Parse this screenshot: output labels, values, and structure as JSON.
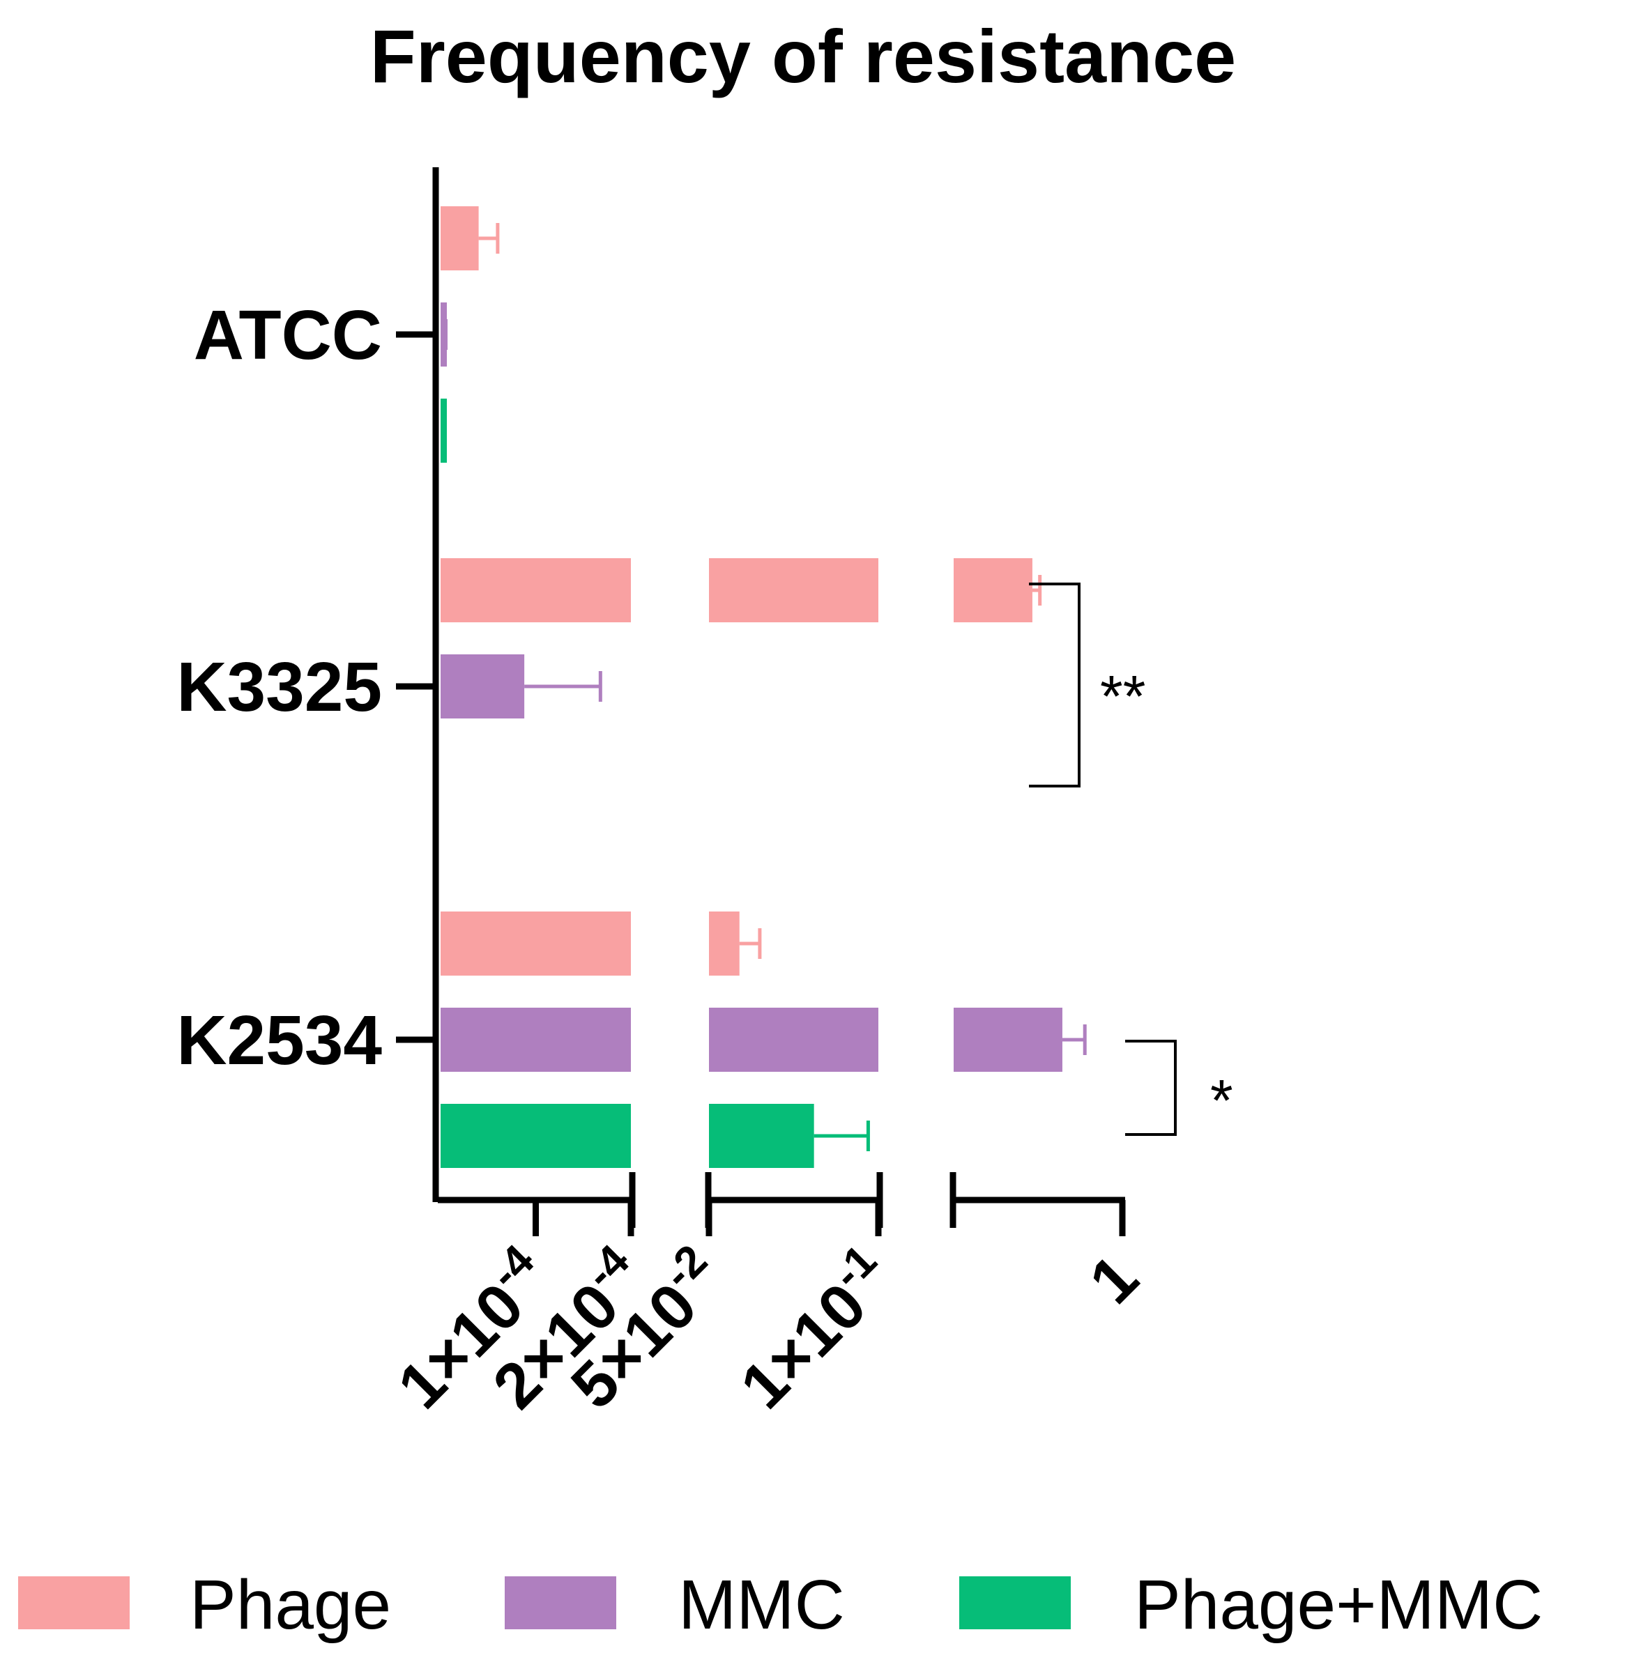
{
  "chart_data": {
    "type": "bar",
    "orientation": "horizontal",
    "title": "Frequency of resistance",
    "xlabel": "",
    "ylabel": "",
    "x_scale": "broken axis (three segments)",
    "x_segments": [
      [
        0,
        0.0002
      ],
      [
        0.05,
        0.1
      ],
      [
        0.1,
        1.0
      ]
    ],
    "tick_labels": [
      {
        "value": 0.0001,
        "base": "1×10",
        "exp": "-4"
      },
      {
        "value": 0.0002,
        "base": "2×10",
        "exp": "-4"
      },
      {
        "value": 0.05,
        "base": "5×10",
        "exp": "-2"
      },
      {
        "value": 0.1,
        "base": "1×10",
        "exp": "-1"
      },
      {
        "value": 1,
        "base": "1",
        "exp": ""
      }
    ],
    "categories": [
      "ATCC",
      "K3325",
      "K2534"
    ],
    "series": [
      {
        "name": "Phage",
        "color": "#F9A1A2",
        "values": [
          4e-05,
          0.52,
          0.059
        ],
        "errors": [
          2e-05,
          0.04,
          0.006
        ]
      },
      {
        "name": "MMC",
        "color": "#AF7FBF",
        "values": [
          5e-06,
          8.8e-05,
          0.68
        ],
        "errors": [
          5e-07,
          8e-05,
          0.12
        ]
      },
      {
        "name": "Phage+MMC",
        "color": "#06BD78",
        "values": [
          5e-06,
          null,
          0.081
        ],
        "errors": [
          0,
          null,
          0.016
        ]
      }
    ],
    "significance": [
      {
        "category": "K3325",
        "label": "**"
      },
      {
        "category": "K2534",
        "label": "*"
      }
    ],
    "legend_position": "bottom",
    "grid": false
  }
}
